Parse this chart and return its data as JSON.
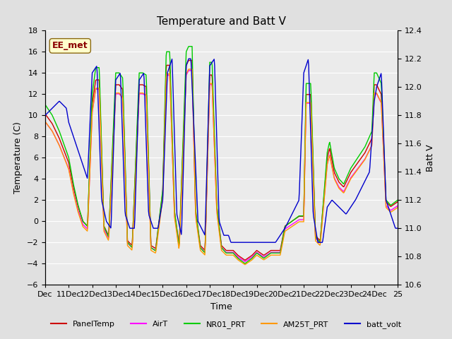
{
  "title": "Temperature and Batt V",
  "xlabel": "Time",
  "ylabel_left": "Temperature (C)",
  "ylabel_right": "Batt V",
  "ylim_left": [
    -6,
    18
  ],
  "ylim_right": [
    10.6,
    12.4
  ],
  "yticks_left": [
    -6,
    -4,
    -2,
    0,
    2,
    4,
    6,
    8,
    10,
    12,
    14,
    16,
    18
  ],
  "yticks_right": [
    10.6,
    10.8,
    11.0,
    11.2,
    11.4,
    11.6,
    11.8,
    12.0,
    12.2,
    12.4
  ],
  "xtick_labels": [
    "Dec",
    "11Dec",
    "12Dec",
    "13Dec",
    "14Dec",
    "15Dec",
    "16Dec",
    "17Dec",
    "18Dec",
    "19Dec",
    "20Dec",
    "21Dec",
    "22Dec",
    "23Dec",
    "24Dec",
    "25"
  ],
  "annotation_text": "EE_met",
  "colors": {
    "PanelTemp": "#cc0000",
    "AirT": "#ff00ff",
    "NR01_PRT": "#00cc00",
    "AM25T_PRT": "#ff9900",
    "batt_volt": "#0000cc"
  },
  "legend_labels": [
    "PanelTemp",
    "AirT",
    "NR01_PRT",
    "AM25T_PRT",
    "batt_volt"
  ],
  "background_color": "#e0e0e0",
  "plot_background": "#ebebeb",
  "grid_color": "#ffffff",
  "title_fontsize": 11,
  "axis_fontsize": 9,
  "tick_fontsize": 8,
  "linewidth": 1.0
}
